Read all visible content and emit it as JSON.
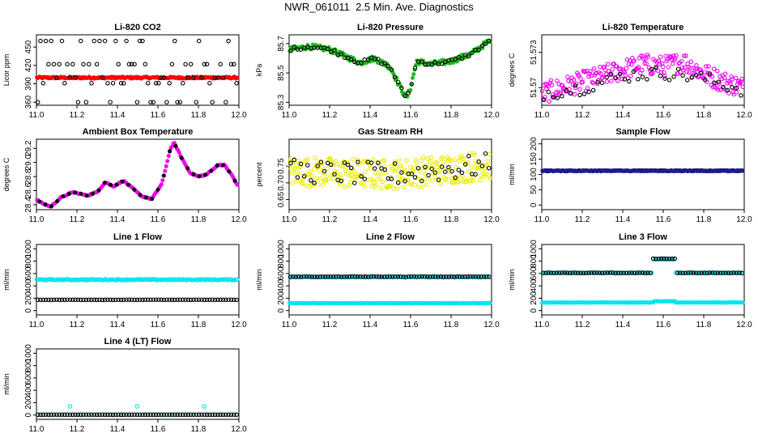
{
  "page": {
    "title": "NWR_061011  2.5 Min. Ave. Diagnostics"
  },
  "chart_data": [
    {
      "id": "co2",
      "type": "scatter",
      "title": "Li-820 CO2",
      "ylabel": "Licor ppm",
      "xlim": [
        11.0,
        12.0
      ],
      "ylim": [
        355,
        470
      ],
      "xticks": [
        11.0,
        11.2,
        11.4,
        11.6,
        11.8,
        12.0
      ],
      "yticks": [
        {
          "v": 360,
          "t": "360"
        },
        {
          "v": 390,
          "t": "390"
        },
        {
          "v": 420,
          "t": "420"
        },
        {
          "v": 450,
          "t": "450"
        }
      ],
      "series": [
        {
          "color": "#ff0000",
          "style": "filled",
          "pattern": "flat",
          "n": 220,
          "base": 400,
          "amp": 1.5
        },
        {
          "color": "#000000",
          "style": "open",
          "pattern": "levels",
          "n": 75,
          "levels": [
            360,
            391,
            400,
            422,
            460
          ]
        }
      ]
    },
    {
      "id": "pressure",
      "type": "scatter",
      "title": "Li-820 Pressure",
      "ylabel": "kPa",
      "xlim": [
        11.0,
        12.0
      ],
      "ylim": [
        85.28,
        85.76
      ],
      "xticks": [
        11.0,
        11.2,
        11.4,
        11.6,
        11.8,
        12.0
      ],
      "yticks": [
        {
          "v": 85.3,
          "t": "85.3"
        },
        {
          "v": 85.5,
          "t": "85.5"
        },
        {
          "v": 85.7,
          "t": "85.7"
        }
      ],
      "series": [
        {
          "color": "#22bb22",
          "style": "filled",
          "pattern": "curve",
          "n": 190,
          "noise": 0.018,
          "curve": [
            [
              11.0,
              85.66
            ],
            [
              11.1,
              85.68
            ],
            [
              11.2,
              85.66
            ],
            [
              11.3,
              85.6
            ],
            [
              11.35,
              85.57
            ],
            [
              11.42,
              85.6
            ],
            [
              11.5,
              85.54
            ],
            [
              11.55,
              85.4
            ],
            [
              11.58,
              85.33
            ],
            [
              11.6,
              85.4
            ],
            [
              11.63,
              85.58
            ],
            [
              11.7,
              85.56
            ],
            [
              11.8,
              85.58
            ],
            [
              11.9,
              85.63
            ],
            [
              11.98,
              85.71
            ]
          ]
        },
        {
          "color": "#000000",
          "style": "open",
          "pattern": "curve",
          "n": 60,
          "noise": 0.012,
          "curve": [
            [
              11.0,
              85.66
            ],
            [
              11.1,
              85.68
            ],
            [
              11.2,
              85.66
            ],
            [
              11.3,
              85.6
            ],
            [
              11.35,
              85.57
            ],
            [
              11.42,
              85.6
            ],
            [
              11.5,
              85.54
            ],
            [
              11.55,
              85.4
            ],
            [
              11.58,
              85.33
            ],
            [
              11.6,
              85.4
            ],
            [
              11.63,
              85.58
            ],
            [
              11.7,
              85.56
            ],
            [
              11.8,
              85.58
            ],
            [
              11.9,
              85.63
            ],
            [
              11.98,
              85.71
            ]
          ]
        }
      ]
    },
    {
      "id": "temperature",
      "type": "scatter",
      "title": "Li-820 Temperature",
      "ylabel": "degrees C",
      "xlim": [
        11.0,
        12.0
      ],
      "ylim": [
        51.5685,
        51.5745
      ],
      "xticks": [
        11.0,
        11.2,
        11.4,
        11.6,
        11.8,
        12.0
      ],
      "yticks": [
        {
          "v": 51.57,
          "t": "51.57"
        },
        {
          "v": 51.573,
          "t": "51.573"
        }
      ],
      "series": [
        {
          "color": "#ee00ee",
          "style": "open",
          "pattern": "band",
          "n": 230,
          "curve": [
            [
              11.0,
              51.5695
            ],
            [
              11.2,
              51.5705
            ],
            [
              11.4,
              51.5715
            ],
            [
              11.5,
              51.572
            ],
            [
              11.6,
              51.5718
            ],
            [
              11.7,
              51.5722
            ],
            [
              11.8,
              51.5712
            ],
            [
              11.9,
              51.5705
            ],
            [
              12.0,
              51.57
            ]
          ],
          "spread": 0.0018
        },
        {
          "color": "#000000",
          "style": "open",
          "pattern": "band",
          "n": 45,
          "curve": [
            [
              11.0,
              51.5695
            ],
            [
              11.2,
              51.57
            ],
            [
              11.4,
              51.571
            ],
            [
              11.6,
              51.5713
            ],
            [
              11.8,
              51.5708
            ],
            [
              12.0,
              51.5698
            ]
          ],
          "spread": 0.0012
        }
      ]
    },
    {
      "id": "ambient",
      "type": "scatter",
      "title": "Ambient Box Temperature",
      "ylabel": "degrees C",
      "xlim": [
        11.0,
        12.0
      ],
      "ylim": [
        28.33,
        29.33
      ],
      "xticks": [
        11.0,
        11.2,
        11.4,
        11.6,
        11.8,
        12.0
      ],
      "yticks": [
        {
          "v": 28.4,
          "t": "28.4"
        },
        {
          "v": 28.6,
          "t": "28.6"
        },
        {
          "v": 28.8,
          "t": "28.8"
        },
        {
          "v": 29.0,
          "t": "29.0"
        },
        {
          "v": 29.2,
          "t": "29.2"
        }
      ],
      "series": [
        {
          "color": "#ee00ee",
          "style": "filled",
          "pattern": "curve",
          "n": 170,
          "noise": 0.008,
          "curve": [
            [
              11.0,
              28.47
            ],
            [
              11.03,
              28.42
            ],
            [
              11.07,
              28.37
            ],
            [
              11.12,
              28.5
            ],
            [
              11.18,
              28.58
            ],
            [
              11.25,
              28.53
            ],
            [
              11.3,
              28.58
            ],
            [
              11.34,
              28.72
            ],
            [
              11.38,
              28.66
            ],
            [
              11.43,
              28.74
            ],
            [
              11.48,
              28.62
            ],
            [
              11.52,
              28.52
            ],
            [
              11.57,
              28.48
            ],
            [
              11.62,
              28.7
            ],
            [
              11.66,
              29.18
            ],
            [
              11.68,
              29.28
            ],
            [
              11.72,
              29.05
            ],
            [
              11.76,
              28.85
            ],
            [
              11.8,
              28.8
            ],
            [
              11.84,
              28.83
            ],
            [
              11.9,
              28.97
            ],
            [
              11.93,
              28.96
            ],
            [
              11.97,
              28.8
            ],
            [
              11.99,
              28.68
            ]
          ]
        },
        {
          "color": "#000000",
          "style": "filled",
          "pattern": "curve",
          "n": 34,
          "noise": 0.004,
          "curve": [
            [
              11.0,
              28.47
            ],
            [
              11.03,
              28.42
            ],
            [
              11.07,
              28.37
            ],
            [
              11.12,
              28.5
            ],
            [
              11.18,
              28.58
            ],
            [
              11.25,
              28.53
            ],
            [
              11.3,
              28.58
            ],
            [
              11.34,
              28.72
            ],
            [
              11.38,
              28.66
            ],
            [
              11.43,
              28.74
            ],
            [
              11.48,
              28.62
            ],
            [
              11.52,
              28.52
            ],
            [
              11.57,
              28.48
            ],
            [
              11.62,
              28.7
            ],
            [
              11.66,
              29.18
            ],
            [
              11.68,
              29.28
            ],
            [
              11.72,
              29.05
            ],
            [
              11.76,
              28.85
            ],
            [
              11.8,
              28.8
            ],
            [
              11.84,
              28.83
            ],
            [
              11.9,
              28.97
            ],
            [
              11.93,
              28.96
            ],
            [
              11.97,
              28.8
            ],
            [
              11.99,
              28.68
            ]
          ]
        }
      ]
    },
    {
      "id": "rh",
      "type": "scatter",
      "title": "Gas Stream RH",
      "ylabel": "percent",
      "xlim": [
        11.0,
        12.0
      ],
      "ylim": [
        0.62,
        0.83
      ],
      "xticks": [
        11.0,
        11.2,
        11.4,
        11.6,
        11.8,
        12.0
      ],
      "yticks": [
        {
          "v": 0.65,
          "t": "0.65"
        },
        {
          "v": 0.7,
          "t": "0.70"
        },
        {
          "v": 0.75,
          "t": "0.75"
        }
      ],
      "series": [
        {
          "color": "#eeee00",
          "style": "open",
          "pattern": "band",
          "n": 260,
          "curve": [
            [
              11.0,
              0.735
            ],
            [
              11.5,
              0.725
            ],
            [
              11.7,
              0.735
            ],
            [
              12.0,
              0.755
            ]
          ],
          "spread": 0.09
        },
        {
          "color": "#000000",
          "style": "open",
          "pattern": "band",
          "n": 60,
          "curve": [
            [
              11.0,
              0.735
            ],
            [
              11.5,
              0.725
            ],
            [
              11.7,
              0.735
            ],
            [
              12.0,
              0.755
            ]
          ],
          "spread": 0.07
        }
      ]
    },
    {
      "id": "sample-flow",
      "type": "scatter",
      "title": "Sample Flow",
      "ylabel": "ml/min",
      "xlim": [
        11.0,
        12.0
      ],
      "ylim": [
        -15,
        215
      ],
      "xticks": [
        11.0,
        11.2,
        11.4,
        11.6,
        11.8,
        12.0
      ],
      "yticks": [
        {
          "v": 0,
          "t": "0"
        },
        {
          "v": 50,
          "t": "50"
        },
        {
          "v": 100,
          "t": "100"
        },
        {
          "v": 150,
          "t": "150"
        },
        {
          "v": 200,
          "t": "200"
        }
      ],
      "series": [
        {
          "color": "#000000",
          "style": "open",
          "pattern": "flat",
          "n": 100,
          "base": 112,
          "amp": 1
        },
        {
          "color": "#1a1a99",
          "style": "filled",
          "pattern": "flat",
          "n": 160,
          "base": 112,
          "amp": 1.5
        }
      ]
    },
    {
      "id": "line1",
      "type": "scatter",
      "title": "Line 1 Flow",
      "ylabel": "ml/min",
      "xlim": [
        11.0,
        12.0
      ],
      "ylim": [
        -70,
        1070
      ],
      "xticks": [
        11.0,
        11.2,
        11.4,
        11.6,
        11.8,
        12.0
      ],
      "yticks": [
        {
          "v": 0,
          "t": "0"
        },
        {
          "v": 200,
          "t": "200"
        },
        {
          "v": 400,
          "t": "400"
        },
        {
          "v": 600,
          "t": "600"
        },
        {
          "v": 800,
          "t": "800"
        },
        {
          "v": 1000,
          "t": "1000"
        }
      ],
      "series": [
        {
          "color": "#00e5ee",
          "style": "open",
          "pattern": "flat",
          "n": 150,
          "base": 500,
          "amp": 8
        },
        {
          "color": "#000000",
          "style": "open",
          "pattern": "flat",
          "n": 75,
          "base": 175,
          "amp": 2
        }
      ]
    },
    {
      "id": "line2",
      "type": "scatter",
      "title": "Line 2 Flow",
      "ylabel": "ml/min",
      "xlim": [
        11.0,
        12.0
      ],
      "ylim": [
        -70,
        1070
      ],
      "xticks": [
        11.0,
        11.2,
        11.4,
        11.6,
        11.8,
        12.0
      ],
      "yticks": [
        {
          "v": 0,
          "t": "0"
        },
        {
          "v": 200,
          "t": "200"
        },
        {
          "v": 400,
          "t": "400"
        },
        {
          "v": 600,
          "t": "600"
        },
        {
          "v": 800,
          "t": "800"
        },
        {
          "v": 1000,
          "t": "1000"
        }
      ],
      "series": [
        {
          "color": "#00e5ee",
          "style": "filled",
          "pattern": "flat",
          "n": 220,
          "base": 120,
          "amp": 3
        },
        {
          "color": "#00e5ee",
          "style": "open",
          "pattern": "flat",
          "n": 110,
          "base": 545,
          "amp": 6
        },
        {
          "color": "#000000",
          "style": "open",
          "pattern": "flat",
          "n": 75,
          "base": 548,
          "amp": 3
        }
      ]
    },
    {
      "id": "line3",
      "type": "scatter",
      "title": "Line 3 Flow",
      "ylabel": "ml/min",
      "xlim": [
        11.0,
        12.0
      ],
      "ylim": [
        -70,
        1070
      ],
      "xticks": [
        11.0,
        11.2,
        11.4,
        11.6,
        11.8,
        12.0
      ],
      "yticks": [
        {
          "v": 0,
          "t": "0"
        },
        {
          "v": 200,
          "t": "200"
        },
        {
          "v": 400,
          "t": "400"
        },
        {
          "v": 600,
          "t": "600"
        },
        {
          "v": 800,
          "t": "800"
        },
        {
          "v": 1000,
          "t": "1000"
        }
      ],
      "series": [
        {
          "color": "#00e5ee",
          "style": "filled",
          "pattern": "step",
          "n": 220,
          "base": 130,
          "alt": 150,
          "from": 11.55,
          "to": 11.66
        },
        {
          "color": "#00e5ee",
          "style": "open",
          "pattern": "step",
          "n": 100,
          "base": 610,
          "alt": 830,
          "from": 11.55,
          "to": 11.66
        },
        {
          "color": "#000000",
          "style": "open",
          "pattern": "step",
          "n": 75,
          "base": 610,
          "alt": 840,
          "from": 11.55,
          "to": 11.66
        }
      ]
    },
    {
      "id": "line4",
      "type": "scatter",
      "title": "Line 4 (LT) Flow",
      "ylabel": "ml/min",
      "xlim": [
        11.0,
        12.0
      ],
      "ylim": [
        -70,
        1070
      ],
      "xticks": [
        11.0,
        11.2,
        11.4,
        11.6,
        11.8,
        12.0
      ],
      "yticks": [
        {
          "v": 0,
          "t": "0"
        },
        {
          "v": 200,
          "t": "200"
        },
        {
          "v": 400,
          "t": "400"
        },
        {
          "v": 600,
          "t": "600"
        },
        {
          "v": 800,
          "t": "800"
        },
        {
          "v": 1000,
          "t": "1000"
        }
      ],
      "series": [
        {
          "color": "#00e5ee",
          "style": "open",
          "pattern": "flat",
          "n": 75,
          "base": 5,
          "amp": 1,
          "spikes": [
            [
              11.17,
              140
            ],
            [
              11.5,
              140
            ],
            [
              11.83,
              140
            ]
          ]
        },
        {
          "color": "#000000",
          "style": "open",
          "pattern": "flat",
          "n": 75,
          "base": 5,
          "amp": 1
        }
      ]
    }
  ]
}
